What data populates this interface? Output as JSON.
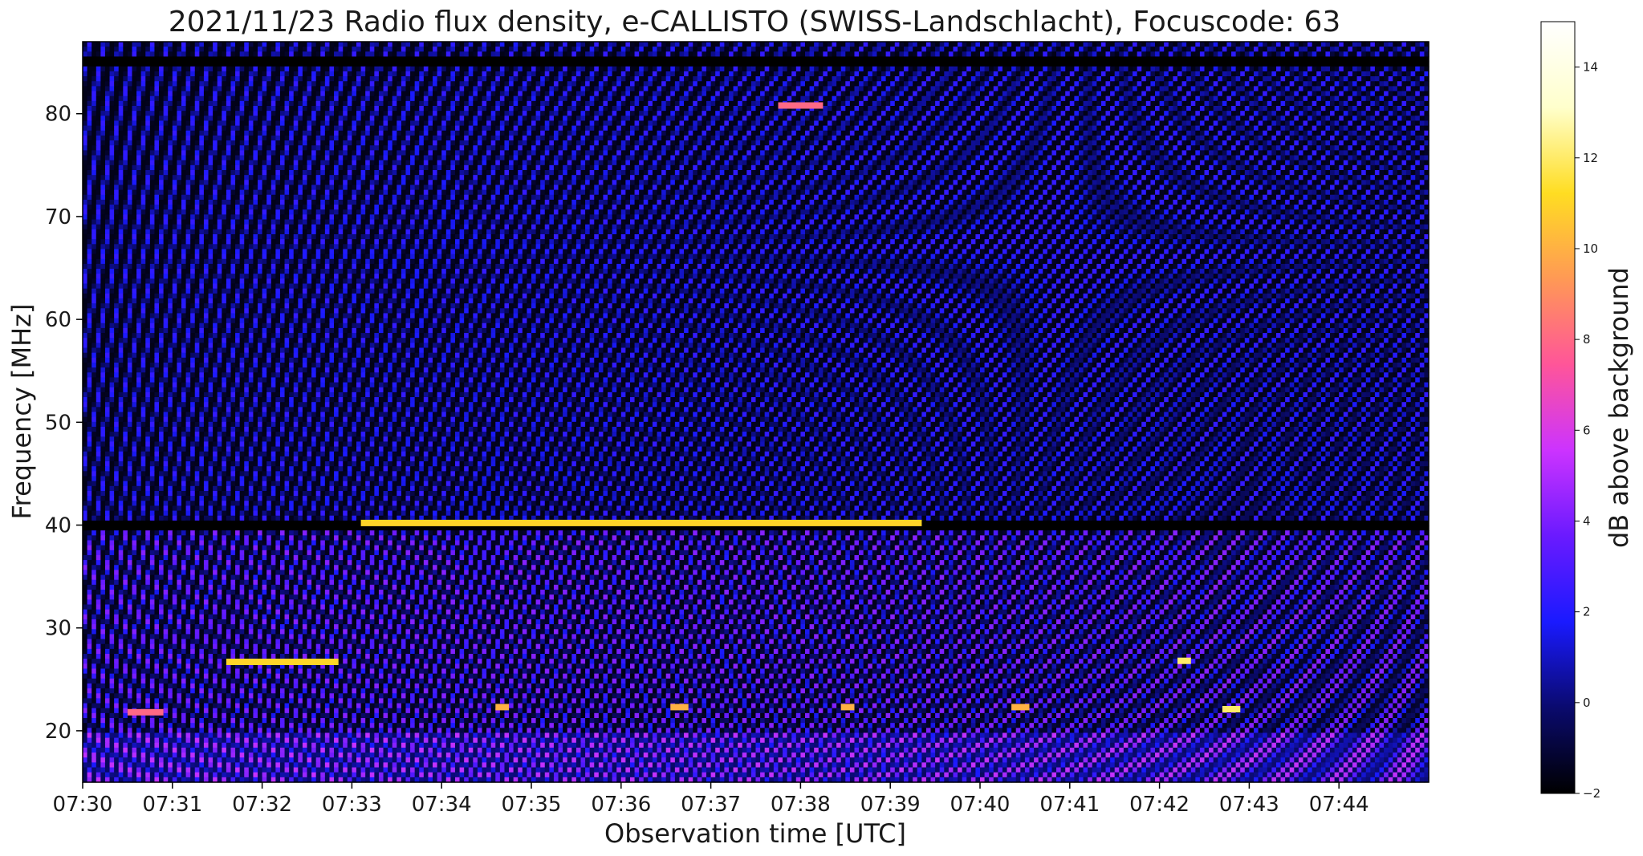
{
  "chart_data": {
    "type": "heatmap",
    "title": "2021/11/23  Radio flux density, e-CALLISTO (SWISS-Landschlacht), Focuscode: 63",
    "xlabel": "Observation time [UTC]",
    "ylabel": "Frequency [MHz]",
    "x_ticks": [
      "07:30",
      "07:31",
      "07:32",
      "07:33",
      "07:34",
      "07:35",
      "07:36",
      "07:37",
      "07:38",
      "07:39",
      "07:40",
      "07:41",
      "07:42",
      "07:43",
      "07:44"
    ],
    "x_range_minutes": [
      0,
      15
    ],
    "y_ticks": [
      20,
      30,
      40,
      50,
      60,
      70,
      80
    ],
    "ylim": [
      15,
      87
    ],
    "colorbar": {
      "label": "dB above background",
      "ticks": [
        -2,
        0,
        2,
        4,
        6,
        8,
        10,
        12,
        14
      ],
      "range": [
        -2,
        15
      ],
      "colormap": "gnuplot2"
    },
    "features": [
      {
        "type": "band",
        "freq": 40.2,
        "t_start": 3.1,
        "t_end": 9.35,
        "db": 11
      },
      {
        "type": "band",
        "freq": 26.7,
        "t_start": 1.6,
        "t_end": 2.85,
        "db": 11
      },
      {
        "type": "band",
        "freq": 80.8,
        "t_start": 7.75,
        "t_end": 8.25,
        "db": 8
      },
      {
        "type": "band",
        "freq": 22.3,
        "t_start": 4.6,
        "t_end": 4.75,
        "db": 10
      },
      {
        "type": "band",
        "freq": 22.3,
        "t_start": 6.55,
        "t_end": 6.75,
        "db": 10
      },
      {
        "type": "band",
        "freq": 22.3,
        "t_start": 8.45,
        "t_end": 8.6,
        "db": 10
      },
      {
        "type": "band",
        "freq": 22.3,
        "t_start": 10.35,
        "t_end": 10.55,
        "db": 10
      },
      {
        "type": "band",
        "freq": 22.1,
        "t_start": 12.7,
        "t_end": 12.9,
        "db": 12
      },
      {
        "type": "band",
        "freq": 26.8,
        "t_start": 12.2,
        "t_end": 12.35,
        "db": 12
      },
      {
        "type": "band",
        "freq": 21.8,
        "t_start": 0.5,
        "t_end": 0.9,
        "db": 8
      }
    ]
  },
  "colors": {
    "background": "#ffffff",
    "text": "#1a1a1a",
    "colormap_stops": [
      "#000000",
      "#0a0a6e",
      "#1a1aff",
      "#6a1aff",
      "#cc33ff",
      "#ff5599",
      "#ff9955",
      "#ffdd22",
      "#ffffcc",
      "#ffffff"
    ]
  }
}
